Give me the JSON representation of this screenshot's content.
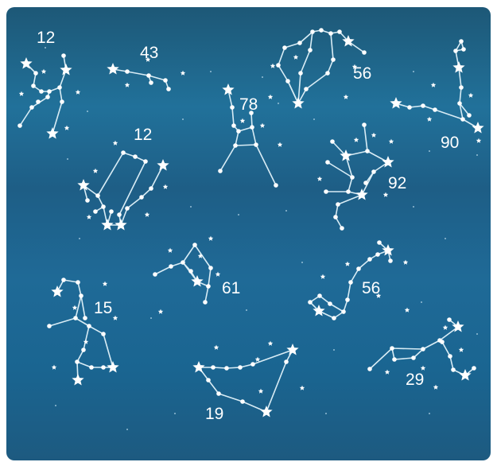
{
  "colors": {
    "star": "#ffffff",
    "line": "#d8ecf5",
    "sky_top": "#1d5877",
    "sky_bottom": "#1d5a80"
  },
  "constellations": [
    {
      "name": "constellation-1",
      "number": "12"
    },
    {
      "name": "constellation-2",
      "number": "43"
    },
    {
      "name": "constellation-3",
      "number": "78"
    },
    {
      "name": "constellation-4",
      "number": "56"
    },
    {
      "name": "constellation-5",
      "number": "90"
    },
    {
      "name": "constellation-6",
      "number": "12"
    },
    {
      "name": "constellation-7",
      "number": "92"
    },
    {
      "name": "constellation-8",
      "number": "61"
    },
    {
      "name": "constellation-9",
      "number": "56"
    },
    {
      "name": "constellation-10",
      "number": "15"
    },
    {
      "name": "constellation-11",
      "number": "19"
    },
    {
      "name": "constellation-12",
      "number": "29"
    }
  ]
}
